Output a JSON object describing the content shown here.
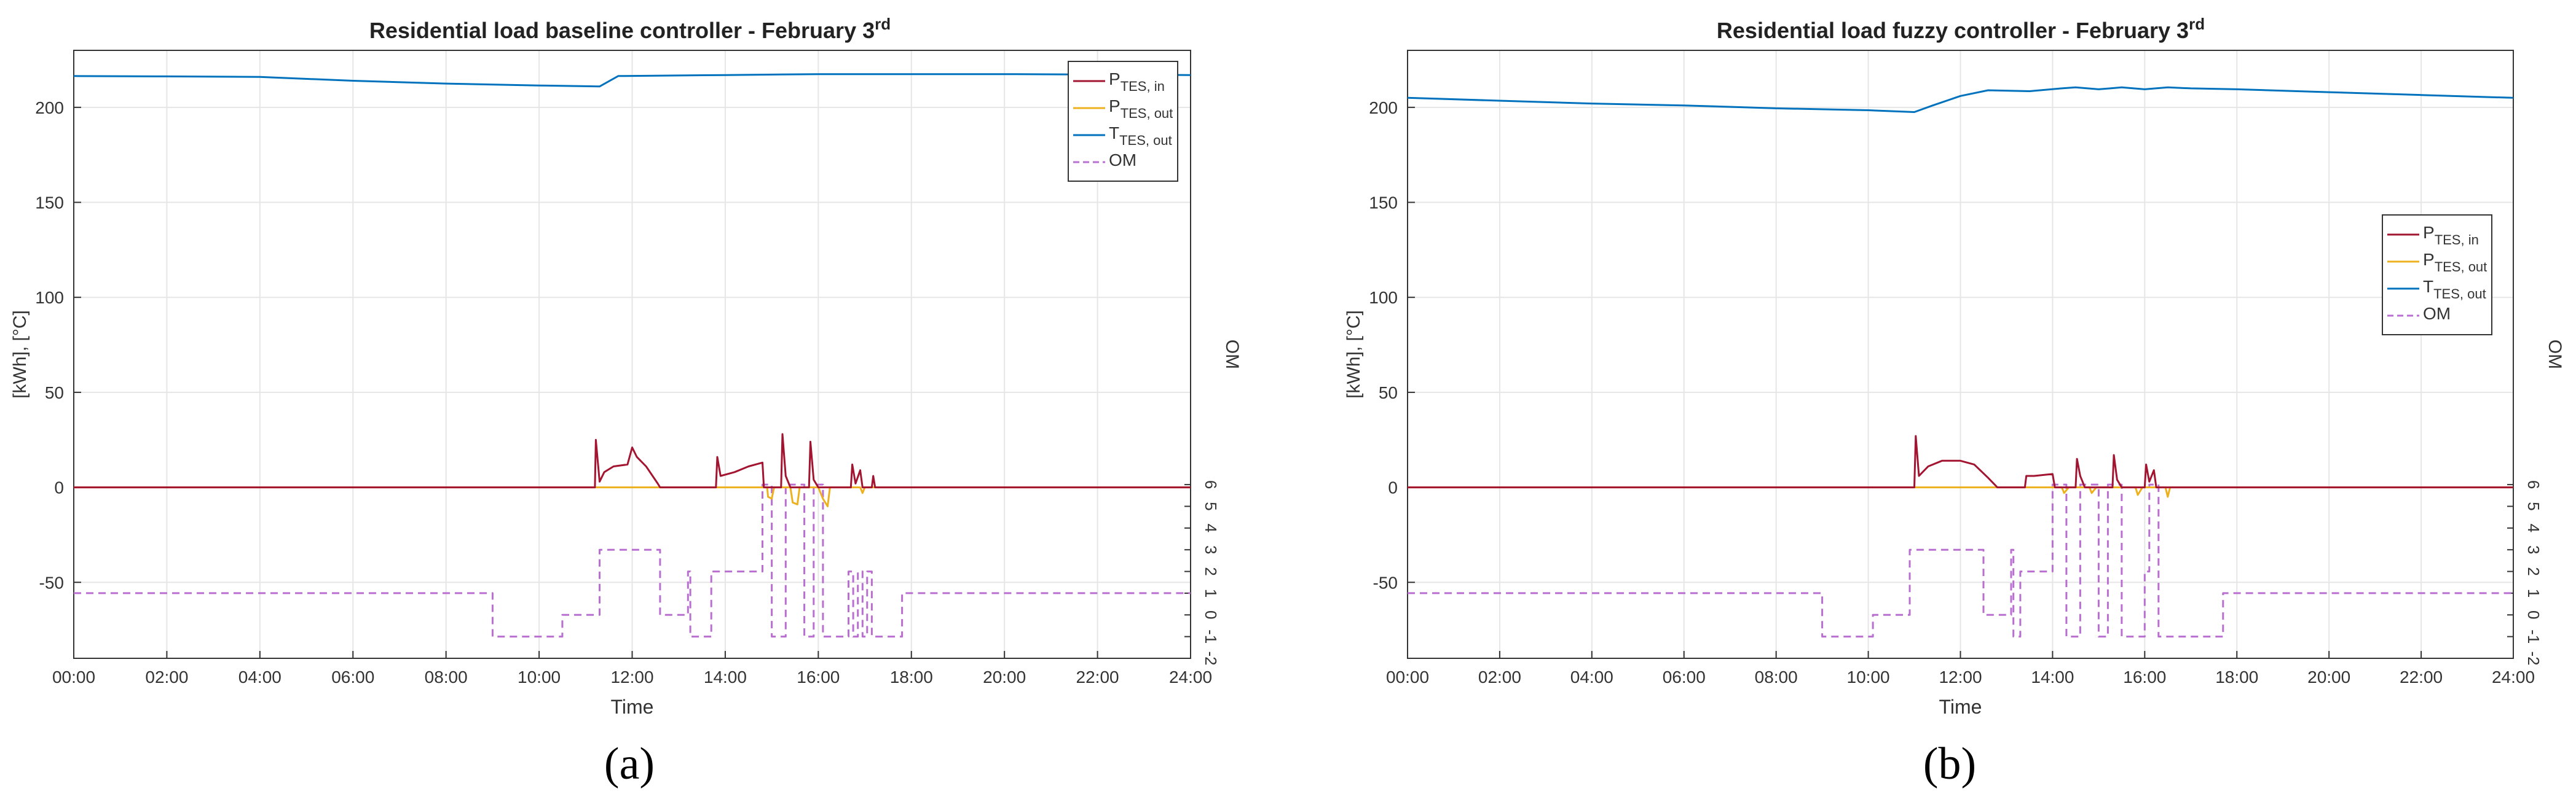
{
  "panels": [
    {
      "caption": "(a)"
    },
    {
      "caption": "(b)"
    }
  ],
  "colors": {
    "p_in": "#a2142f",
    "p_out": "#edb120",
    "t_out": "#0072bd",
    "om": "#b86fd0",
    "grid": "#e6e6e6",
    "axis": "#333333"
  },
  "chart_data": [
    {
      "type": "line",
      "title": "Residential load baseline controller - February 3rd",
      "title_main": "Residential load baseline controller - February 3",
      "title_sup": "rd",
      "xlabel": "Time",
      "ylabel": "[kWh], [°C]",
      "ylabel_right": "OM",
      "xlim": [
        0,
        24
      ],
      "ylim": [
        -90,
        230
      ],
      "y2lim": [
        -2,
        26
      ],
      "x_ticks": [
        0,
        2,
        4,
        6,
        8,
        10,
        12,
        14,
        16,
        18,
        20,
        22,
        24
      ],
      "x_tick_labels": [
        "00:00",
        "02:00",
        "04:00",
        "06:00",
        "08:00",
        "10:00",
        "12:00",
        "14:00",
        "16:00",
        "18:00",
        "20:00",
        "22:00",
        "24:00"
      ],
      "y_ticks": [
        -50,
        0,
        50,
        100,
        150,
        200
      ],
      "y_tick_labels": [
        "-50",
        "0",
        "50",
        "100",
        "150",
        "200"
      ],
      "y2_ticks": [
        -2,
        -1,
        0,
        1,
        2,
        3,
        4,
        5,
        6
      ],
      "y2_tick_labels": [
        "-2",
        "-1",
        "0",
        "1",
        "2",
        "3",
        "4",
        "5",
        "6"
      ],
      "legend_position": "top-right",
      "series": [
        {
          "name": "P_TES,in",
          "legend_main": "P",
          "legend_sub": "TES, in",
          "color_key": "p_in",
          "axis": "left",
          "dash": false,
          "points": [
            [
              0,
              0
            ],
            [
              11.2,
              0
            ],
            [
              11.22,
              25
            ],
            [
              11.3,
              3
            ],
            [
              11.4,
              8
            ],
            [
              11.6,
              11
            ],
            [
              11.9,
              12
            ],
            [
              12.0,
              21
            ],
            [
              12.1,
              16
            ],
            [
              12.3,
              11
            ],
            [
              12.55,
              2
            ],
            [
              12.6,
              0
            ],
            [
              13.8,
              0
            ],
            [
              13.83,
              16
            ],
            [
              13.9,
              6
            ],
            [
              14.2,
              8
            ],
            [
              14.5,
              11
            ],
            [
              14.8,
              13
            ],
            [
              14.83,
              0
            ],
            [
              15.2,
              0
            ],
            [
              15.23,
              28
            ],
            [
              15.3,
              6
            ],
            [
              15.4,
              0
            ],
            [
              15.8,
              0
            ],
            [
              15.83,
              24
            ],
            [
              15.9,
              4
            ],
            [
              16.0,
              0
            ],
            [
              16.7,
              0
            ],
            [
              16.73,
              12
            ],
            [
              16.8,
              2
            ],
            [
              16.9,
              9
            ],
            [
              16.95,
              0
            ],
            [
              17.15,
              0
            ],
            [
              17.18,
              6
            ],
            [
              17.22,
              0
            ],
            [
              24,
              0
            ]
          ]
        },
        {
          "name": "P_TES,out",
          "legend_main": "P",
          "legend_sub": "TES, out",
          "color_key": "p_out",
          "axis": "left",
          "dash": false,
          "points": [
            [
              0,
              0
            ],
            [
              14.9,
              0
            ],
            [
              14.92,
              -5
            ],
            [
              15.0,
              -6
            ],
            [
              15.05,
              0
            ],
            [
              15.4,
              0
            ],
            [
              15.45,
              -8
            ],
            [
              15.55,
              -9
            ],
            [
              15.6,
              0
            ],
            [
              16.0,
              0
            ],
            [
              16.1,
              -6
            ],
            [
              16.2,
              -10
            ],
            [
              16.25,
              0
            ],
            [
              16.9,
              0
            ],
            [
              16.95,
              -3
            ],
            [
              17.0,
              0
            ],
            [
              24,
              0
            ]
          ]
        },
        {
          "name": "T_TES,out",
          "legend_main": "T",
          "legend_sub": "TES, out",
          "color_key": "t_out",
          "axis": "left",
          "dash": false,
          "points": [
            [
              0,
              216.5
            ],
            [
              2,
              216.3
            ],
            [
              4,
              216
            ],
            [
              6,
              214
            ],
            [
              8,
              212.5
            ],
            [
              10,
              211.5
            ],
            [
              11.3,
              211
            ],
            [
              11.7,
              216.5
            ],
            [
              14,
              217
            ],
            [
              16,
              217.5
            ],
            [
              20,
              217.5
            ],
            [
              24,
              217
            ]
          ]
        },
        {
          "name": "OM",
          "legend_main": "OM",
          "legend_sub": "",
          "color_key": "om",
          "axis": "right",
          "dash": true,
          "points": [
            [
              0,
              1
            ],
            [
              9,
              1
            ],
            [
              9,
              -1
            ],
            [
              10.5,
              -1
            ],
            [
              10.5,
              0
            ],
            [
              11.3,
              0
            ],
            [
              11.3,
              3
            ],
            [
              12.6,
              3
            ],
            [
              12.6,
              0
            ],
            [
              13.2,
              0
            ],
            [
              13.2,
              2
            ],
            [
              13.25,
              2
            ],
            [
              13.25,
              -1
            ],
            [
              13.7,
              -1
            ],
            [
              13.7,
              2
            ],
            [
              14.8,
              2
            ],
            [
              14.8,
              6
            ],
            [
              15.0,
              6
            ],
            [
              15.0,
              -1
            ],
            [
              15.3,
              -1
            ],
            [
              15.3,
              6
            ],
            [
              15.7,
              6
            ],
            [
              15.7,
              -1
            ],
            [
              15.9,
              -1
            ],
            [
              15.9,
              6
            ],
            [
              16.1,
              6
            ],
            [
              16.1,
              -1
            ],
            [
              16.65,
              -1
            ],
            [
              16.65,
              2
            ],
            [
              16.75,
              2
            ],
            [
              16.75,
              -1
            ],
            [
              16.85,
              -1
            ],
            [
              16.85,
              2
            ],
            [
              16.95,
              2
            ],
            [
              16.95,
              -1
            ],
            [
              17.05,
              -1
            ],
            [
              17.05,
              2
            ],
            [
              17.15,
              2
            ],
            [
              17.15,
              -1
            ],
            [
              17.8,
              -1
            ],
            [
              17.8,
              1
            ],
            [
              24,
              1
            ]
          ]
        }
      ]
    },
    {
      "type": "line",
      "title": "Residential load fuzzy controller - February 3rd",
      "title_main": "Residential load fuzzy controller - February 3",
      "title_sup": "rd",
      "xlabel": "Time",
      "ylabel": "[kWh], [°C]",
      "ylabel_right": "OM",
      "xlim": [
        0,
        24
      ],
      "ylim": [
        -90,
        230
      ],
      "y2lim": [
        -2,
        26
      ],
      "x_ticks": [
        0,
        2,
        4,
        6,
        8,
        10,
        12,
        14,
        16,
        18,
        20,
        22,
        24
      ],
      "x_tick_labels": [
        "00:00",
        "02:00",
        "04:00",
        "06:00",
        "08:00",
        "10:00",
        "12:00",
        "14:00",
        "16:00",
        "18:00",
        "20:00",
        "22:00",
        "24:00"
      ],
      "y_ticks": [
        -50,
        0,
        50,
        100,
        150,
        200
      ],
      "y_tick_labels": [
        "-50",
        "0",
        "50",
        "100",
        "150",
        "200"
      ],
      "y2_ticks": [
        -2,
        -1,
        0,
        1,
        2,
        3,
        4,
        5,
        6
      ],
      "y2_tick_labels": [
        "-2",
        "-1",
        "0",
        "1",
        "2",
        "3",
        "4",
        "5",
        "6"
      ],
      "legend_position": "right-middle",
      "series": [
        {
          "name": "P_TES,in",
          "legend_main": "P",
          "legend_sub": "TES, in",
          "color_key": "p_in",
          "axis": "left",
          "dash": false,
          "points": [
            [
              0,
              0
            ],
            [
              11.0,
              0
            ],
            [
              11.03,
              27
            ],
            [
              11.1,
              6
            ],
            [
              11.3,
              11
            ],
            [
              11.6,
              14
            ],
            [
              12.0,
              14
            ],
            [
              12.3,
              12
            ],
            [
              12.6,
              5
            ],
            [
              12.8,
              0
            ],
            [
              13.4,
              0
            ],
            [
              13.43,
              6
            ],
            [
              13.6,
              6
            ],
            [
              14.0,
              7
            ],
            [
              14.05,
              0
            ],
            [
              14.5,
              0
            ],
            [
              14.53,
              15
            ],
            [
              14.6,
              6
            ],
            [
              14.7,
              0
            ],
            [
              15.3,
              0
            ],
            [
              15.33,
              17
            ],
            [
              15.4,
              4
            ],
            [
              15.5,
              0
            ],
            [
              16.0,
              0
            ],
            [
              16.03,
              12
            ],
            [
              16.1,
              3
            ],
            [
              16.2,
              9
            ],
            [
              16.25,
              0
            ],
            [
              24,
              0
            ]
          ]
        },
        {
          "name": "P_TES,out",
          "legend_main": "P",
          "legend_sub": "TES, out",
          "color_key": "p_out",
          "axis": "left",
          "dash": false,
          "points": [
            [
              0,
              0
            ],
            [
              14.2,
              0
            ],
            [
              14.25,
              -3
            ],
            [
              14.35,
              0
            ],
            [
              14.8,
              0
            ],
            [
              14.85,
              -3
            ],
            [
              14.95,
              0
            ],
            [
              15.8,
              0
            ],
            [
              15.85,
              -4
            ],
            [
              15.95,
              0
            ],
            [
              16.45,
              0
            ],
            [
              16.5,
              -5
            ],
            [
              16.55,
              0
            ],
            [
              24,
              0
            ]
          ]
        },
        {
          "name": "T_TES,out",
          "legend_main": "T",
          "legend_sub": "TES, out",
          "color_key": "t_out",
          "axis": "left",
          "dash": false,
          "points": [
            [
              0,
              205
            ],
            [
              2,
              203.5
            ],
            [
              4,
              202
            ],
            [
              6,
              201
            ],
            [
              8,
              199.5
            ],
            [
              10,
              198.5
            ],
            [
              11,
              197.5
            ],
            [
              11.4,
              201
            ],
            [
              12,
              206
            ],
            [
              12.6,
              209
            ],
            [
              13.5,
              208.5
            ],
            [
              14.2,
              210
            ],
            [
              14.5,
              210.5
            ],
            [
              15,
              209.5
            ],
            [
              15.5,
              210.5
            ],
            [
              16,
              209.5
            ],
            [
              16.5,
              210.5
            ],
            [
              17,
              210
            ],
            [
              18,
              209.5
            ],
            [
              20,
              208
            ],
            [
              22,
              206.5
            ],
            [
              24,
              205
            ]
          ]
        },
        {
          "name": "OM",
          "legend_main": "OM",
          "legend_sub": "",
          "color_key": "om",
          "axis": "right",
          "dash": true,
          "points": [
            [
              0,
              1
            ],
            [
              9,
              1
            ],
            [
              9,
              -1
            ],
            [
              10.1,
              -1
            ],
            [
              10.1,
              0
            ],
            [
              10.9,
              0
            ],
            [
              10.9,
              3
            ],
            [
              12.5,
              3
            ],
            [
              12.5,
              0
            ],
            [
              13.1,
              0
            ],
            [
              13.1,
              3
            ],
            [
              13.15,
              3
            ],
            [
              13.15,
              -1
            ],
            [
              13.3,
              -1
            ],
            [
              13.3,
              2
            ],
            [
              14.0,
              2
            ],
            [
              14.0,
              6
            ],
            [
              14.3,
              6
            ],
            [
              14.3,
              -1
            ],
            [
              14.6,
              -1
            ],
            [
              14.6,
              6
            ],
            [
              15.0,
              6
            ],
            [
              15.0,
              -1
            ],
            [
              15.2,
              -1
            ],
            [
              15.2,
              6
            ],
            [
              15.5,
              6
            ],
            [
              15.5,
              -1
            ],
            [
              16.0,
              -1
            ],
            [
              16.0,
              2
            ],
            [
              16.1,
              2
            ],
            [
              16.1,
              6
            ],
            [
              16.3,
              6
            ],
            [
              16.3,
              -1
            ],
            [
              17.7,
              -1
            ],
            [
              17.7,
              1
            ],
            [
              24,
              1
            ]
          ]
        }
      ]
    }
  ]
}
